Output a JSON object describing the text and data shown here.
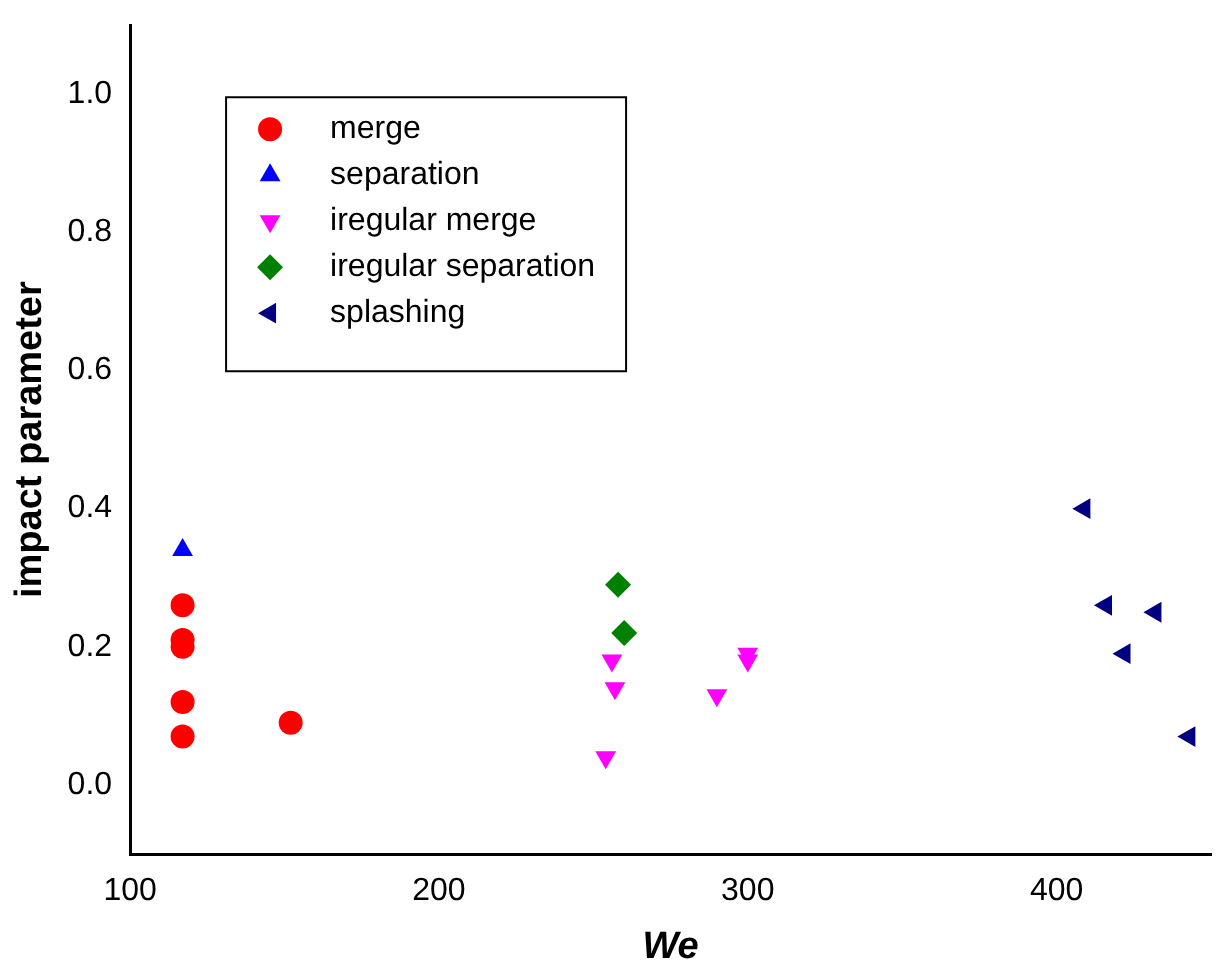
{
  "chart_data": {
    "type": "scatter",
    "xlabel": "We",
    "ylabel": "impact parameter",
    "xlim": [
      100,
      450
    ],
    "xticks": [
      100,
      200,
      300,
      400
    ],
    "ylim": [
      -0.1,
      1.1
    ],
    "yticks": [
      {
        "value": 0,
        "label": "0.0"
      },
      {
        "value": 0.2,
        "label": "0.2"
      },
      {
        "value": 0.4,
        "label": "0.4"
      },
      {
        "value": 0.6,
        "label": "0.6"
      },
      {
        "value": 0.8,
        "label": "0.8"
      },
      {
        "value": 1,
        "label": "1.0"
      }
    ],
    "grid": false,
    "legend": "top left",
    "series": [
      {
        "name": "merge",
        "color": "#ff0000",
        "marker": "circle",
        "x": [
          117,
          117,
          117,
          117,
          117,
          152
        ],
        "values": [
          0.26,
          0.21,
          0.2,
          0.12,
          0.07,
          0.09
        ]
      },
      {
        "name": "separation",
        "color": "#0000ff",
        "marker": "triangle",
        "x": [
          117
        ],
        "values": [
          0.34
        ]
      },
      {
        "name": "iregular merge",
        "color": "#ff00ff",
        "marker": "triangle-down",
        "x": [
          254,
          256,
          257,
          290,
          300,
          300
        ],
        "values": [
          0.04,
          0.18,
          0.14,
          0.13,
          0.19,
          0.18
        ]
      },
      {
        "name": "iregular separation",
        "color": "#008000",
        "marker": "diamond",
        "x": [
          258,
          260
        ],
        "values": [
          0.29,
          0.22
        ]
      },
      {
        "name": "splashing",
        "color": "#000080",
        "marker": "triangle-left",
        "x": [
          409,
          416,
          432,
          422,
          443
        ],
        "values": [
          0.4,
          0.26,
          0.25,
          0.19,
          0.07
        ]
      }
    ]
  }
}
